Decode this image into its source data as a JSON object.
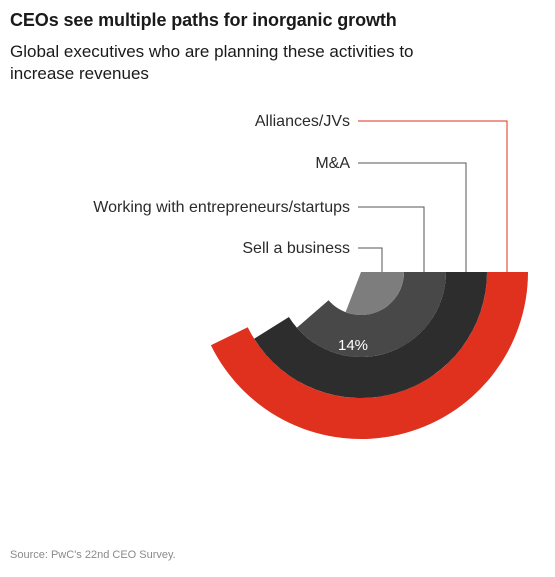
{
  "chart_data": {
    "type": "radial-bar",
    "title": "CEOs see multiple paths for inorganic growth",
    "subtitle": "Global executives who are planning these activities to increase revenues",
    "unit": "%",
    "categories": [
      "Alliances/JVs",
      "M&A",
      "Working with entrepreneurs/startups",
      "Sell a business"
    ],
    "values": [
      40,
      37,
      32,
      14
    ],
    "value_labels": [
      "40%",
      "37%",
      "32%",
      "14%"
    ],
    "colors": [
      "#e0301e",
      "#2d2d2d",
      "#484848",
      "#7d7d7d"
    ],
    "leader_color_first": "#e0301e",
    "leader_color_rest": "#555555"
  },
  "source": "Source: PwC's 22nd CEO Survey."
}
